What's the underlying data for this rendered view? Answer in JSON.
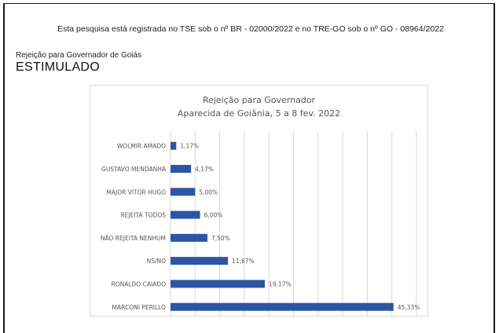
{
  "header": {
    "registry_text": "Esta pesquisa está registrada no TSE sob o nº BR - 02000/2022 e no TRE-GO sob o nº GO - 08964/2022",
    "subtitle": "Rejeição para Governador de Goiás",
    "mode": "ESTIMULADO"
  },
  "colors": {
    "bar": "#2e55a4",
    "grid": "#d9d9d9",
    "text": "#555555"
  },
  "chart_data": {
    "type": "bar",
    "orientation": "horizontal",
    "title": "Rejeição para Governador",
    "subtitle": "Aparecida de Goiânia, 5 a 8 fev. 2022",
    "categories": [
      "WOLMIR AMADO",
      "GUSTAVO MENDANHA",
      "MAJOR VITOR HUGO",
      "REJEITA TODOS",
      "NÃO REJEITA NENHUM",
      "NS/NO",
      "RONALDO CAIADO",
      "MARCONI PERILLO"
    ],
    "values": [
      1.17,
      4.17,
      5.0,
      6.0,
      7.5,
      11.67,
      19.17,
      45.33
    ],
    "labels": [
      "1,17%",
      "4,17%",
      "5,00%",
      "6,00%",
      "7,50%",
      "11,67%",
      "19,17%",
      "45,33%"
    ],
    "xlim": [
      0,
      50
    ],
    "grid": true,
    "legend": "none"
  }
}
